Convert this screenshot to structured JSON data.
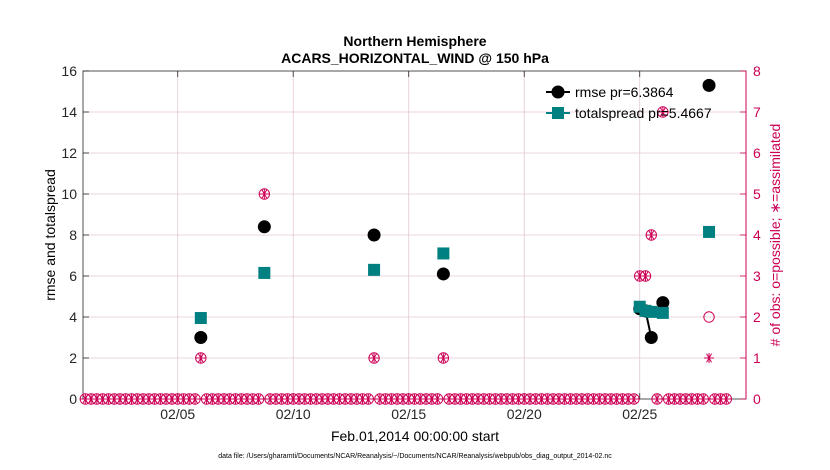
{
  "chart_data": {
    "type": "scatter",
    "title": "Northern Hemisphere",
    "subtitle": "ACARS_HORIZONTAL_WIND @ 150 hPa",
    "xlabel": "Feb.01,2014 00:00:00 start",
    "ylabel": "rmse and totalspread",
    "ylabel_right": "# of obs: o=possible; ∗=assimilated",
    "footnote": "data file: /Users/gharamti/Documents/NCAR/Reanalysis/~/Documents/NCAR/Reanalysis/webpub/obs_diag_output_2014-02.nc",
    "xlim": [
      0.9,
      29.6
    ],
    "ylim": [
      0,
      16
    ],
    "ylim_right": [
      0,
      8
    ],
    "x_ticks": [
      5,
      10,
      15,
      20,
      25
    ],
    "x_tick_labels": [
      "02/05",
      "02/10",
      "02/15",
      "02/20",
      "02/25"
    ],
    "y_ticks": [
      0,
      2,
      4,
      6,
      8,
      10,
      12,
      14,
      16
    ],
    "y_tick_labels": [
      "0",
      "2",
      "4",
      "6",
      "8",
      "10",
      "12",
      "14",
      "16"
    ],
    "y2_ticks": [
      0,
      1,
      2,
      3,
      4,
      5,
      6,
      7,
      8
    ],
    "y2_tick_labels": [
      "0",
      "1",
      "2",
      "3",
      "4",
      "5",
      "6",
      "7",
      "8"
    ],
    "legend_position": "top-right",
    "series": [
      {
        "name": "rmse",
        "legend": "rmse pr=6.3864",
        "color": "#000000",
        "marker": "circle",
        "x": [
          6.0,
          8.75,
          13.5,
          16.5,
          25.0,
          25.25,
          25.5,
          26.0,
          28.0
        ],
        "y": [
          3.0,
          8.4,
          8.0,
          6.1,
          4.4,
          4.3,
          3.0,
          4.7,
          15.3
        ],
        "segments": [
          [
            25.0,
            25.25,
            25.5
          ]
        ]
      },
      {
        "name": "totalspread",
        "legend": "totalspread pr=5.4667",
        "color": "#008080",
        "marker": "square",
        "x": [
          6.0,
          8.75,
          13.5,
          16.5,
          25.0,
          25.25,
          25.5,
          26.0,
          28.0
        ],
        "y": [
          3.95,
          6.15,
          6.3,
          7.1,
          4.5,
          4.3,
          4.25,
          4.2,
          8.15
        ],
        "segments": [
          [
            25.0,
            25.25,
            25.5
          ]
        ]
      }
    ],
    "obs_possible": {
      "name": "possible",
      "color": "#cc0055",
      "marker": "o",
      "x": [
        1.0,
        1.25,
        1.5,
        1.75,
        2.0,
        2.25,
        2.5,
        2.75,
        3.0,
        3.25,
        3.5,
        3.75,
        4.0,
        4.25,
        4.5,
        4.75,
        5.0,
        5.25,
        5.5,
        5.75,
        6.0,
        6.25,
        6.5,
        6.75,
        7.0,
        7.25,
        7.5,
        7.75,
        8.0,
        8.25,
        8.5,
        8.75,
        9.0,
        9.25,
        9.5,
        9.75,
        10.0,
        10.25,
        10.5,
        10.75,
        11.0,
        11.25,
        11.5,
        11.75,
        12.0,
        12.25,
        12.5,
        12.75,
        13.0,
        13.25,
        13.5,
        13.75,
        14.0,
        14.25,
        14.5,
        14.75,
        15.0,
        15.25,
        15.5,
        15.75,
        16.0,
        16.25,
        16.5,
        16.75,
        17.0,
        17.25,
        17.5,
        17.75,
        18.0,
        18.25,
        18.5,
        18.75,
        19.0,
        19.25,
        19.5,
        19.75,
        20.0,
        20.25,
        20.5,
        20.75,
        21.0,
        21.25,
        21.5,
        21.75,
        22.0,
        22.25,
        22.5,
        22.75,
        23.0,
        23.25,
        23.5,
        23.75,
        24.0,
        24.25,
        24.5,
        24.75,
        25.0,
        25.25,
        25.5,
        25.75,
        26.0,
        26.25,
        26.5,
        26.75,
        27.0,
        27.25,
        27.5,
        27.75,
        28.0,
        28.25,
        28.5,
        28.75
      ],
      "y": [
        0,
        0,
        0,
        0,
        0,
        0,
        0,
        0,
        0,
        0,
        0,
        0,
        0,
        0,
        0,
        0,
        0,
        0,
        0,
        0,
        1,
        0,
        0,
        0,
        0,
        0,
        0,
        0,
        0,
        0,
        0,
        5,
        0,
        0,
        0,
        0,
        0,
        0,
        0,
        0,
        0,
        0,
        0,
        0,
        0,
        0,
        0,
        0,
        0,
        0,
        1,
        0,
        0,
        0,
        0,
        0,
        0,
        0,
        0,
        0,
        0,
        0,
        1,
        0,
        0,
        0,
        0,
        0,
        0,
        0,
        0,
        0,
        0,
        0,
        0,
        0,
        0,
        0,
        0,
        0,
        0,
        0,
        0,
        0,
        0,
        0,
        0,
        0,
        0,
        0,
        0,
        0,
        0,
        0,
        0,
        0,
        3,
        3,
        4,
        0,
        7,
        0,
        0,
        0,
        0,
        0,
        0,
        0,
        2,
        0,
        0,
        0
      ]
    },
    "obs_assimilated": {
      "name": "assimilated",
      "color": "#cc0055",
      "marker": "*",
      "x": [
        1.0,
        1.25,
        1.5,
        1.75,
        2.0,
        2.25,
        2.5,
        2.75,
        3.0,
        3.25,
        3.5,
        3.75,
        4.0,
        4.25,
        4.5,
        4.75,
        5.0,
        5.25,
        5.5,
        5.75,
        6.0,
        6.25,
        6.5,
        6.75,
        7.0,
        7.25,
        7.5,
        7.75,
        8.0,
        8.25,
        8.5,
        8.75,
        9.0,
        9.25,
        9.5,
        9.75,
        10.0,
        10.25,
        10.5,
        10.75,
        11.0,
        11.25,
        11.5,
        11.75,
        12.0,
        12.25,
        12.5,
        12.75,
        13.0,
        13.25,
        13.5,
        13.75,
        14.0,
        14.25,
        14.5,
        14.75,
        15.0,
        15.25,
        15.5,
        15.75,
        16.0,
        16.25,
        16.5,
        16.75,
        17.0,
        17.25,
        17.5,
        17.75,
        18.0,
        18.25,
        18.5,
        18.75,
        19.0,
        19.25,
        19.5,
        19.75,
        20.0,
        20.25,
        20.5,
        20.75,
        21.0,
        21.25,
        21.5,
        21.75,
        22.0,
        22.25,
        22.5,
        22.75,
        23.0,
        23.25,
        23.5,
        23.75,
        24.0,
        24.25,
        24.5,
        24.75,
        25.0,
        25.25,
        25.5,
        25.75,
        26.0,
        26.25,
        26.5,
        26.75,
        27.0,
        27.25,
        27.5,
        27.75,
        28.0,
        28.25,
        28.5,
        28.75
      ],
      "y": [
        0,
        0,
        0,
        0,
        0,
        0,
        0,
        0,
        0,
        0,
        0,
        0,
        0,
        0,
        0,
        0,
        0,
        0,
        0,
        0,
        1,
        0,
        0,
        0,
        0,
        0,
        0,
        0,
        0,
        0,
        0,
        5,
        0,
        0,
        0,
        0,
        0,
        0,
        0,
        0,
        0,
        0,
        0,
        0,
        0,
        0,
        0,
        0,
        0,
        0,
        1,
        0,
        0,
        0,
        0,
        0,
        0,
        0,
        0,
        0,
        0,
        0,
        1,
        0,
        0,
        0,
        0,
        0,
        0,
        0,
        0,
        0,
        0,
        0,
        0,
        0,
        0,
        0,
        0,
        0,
        0,
        0,
        0,
        0,
        0,
        0,
        0,
        0,
        0,
        0,
        0,
        0,
        0,
        0,
        0,
        0,
        3,
        3,
        4,
        0,
        7,
        0,
        0,
        0,
        0,
        0,
        0,
        0,
        1,
        0,
        0,
        0
      ]
    },
    "grid": true
  }
}
